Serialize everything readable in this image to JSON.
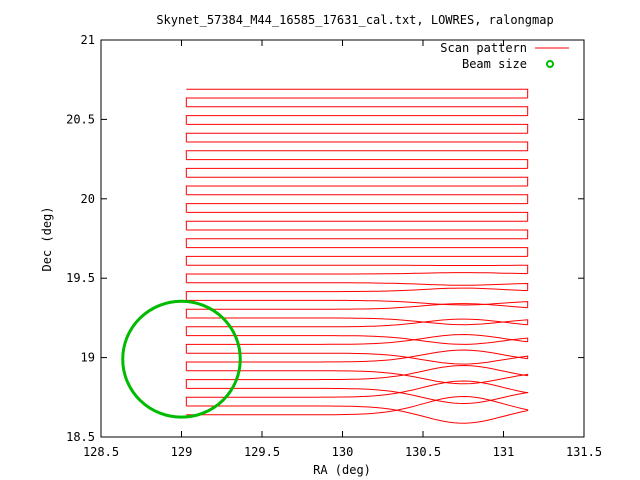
{
  "chart_data": {
    "type": "line",
    "title": "Skynet_57384_M44_16585_17631_cal.txt, LOWRES, ralongmap",
    "xlabel": "RA (deg)",
    "ylabel": "Dec (deg)",
    "xlim": [
      128.5,
      131.5
    ],
    "ylim": [
      18.5,
      21
    ],
    "xticks": [
      128.5,
      129,
      129.5,
      130,
      130.5,
      131,
      131.5
    ],
    "xtick_labels": [
      "128.5",
      "129",
      "129.5",
      "130",
      "130.5",
      "131",
      "131.5"
    ],
    "yticks": [
      18.5,
      19,
      19.5,
      20,
      20.5,
      21
    ],
    "ytick_labels": [
      "18.5",
      "19",
      "19.5",
      "20",
      "20.5",
      "21"
    ],
    "grid": false,
    "legend_position": "top-right",
    "series": [
      {
        "name": "Scan pattern",
        "color": "#ff0000",
        "style": "line",
        "ra_start": 129.03,
        "ra_end": 131.15,
        "dec_start": 18.64,
        "dec_end": 20.69,
        "scan_count": 38
      },
      {
        "name": "Beam size",
        "color": "#00bb00",
        "style": "circle",
        "center_ra": 129.0,
        "center_dec": 18.99,
        "radius_deg": 0.365
      }
    ]
  }
}
